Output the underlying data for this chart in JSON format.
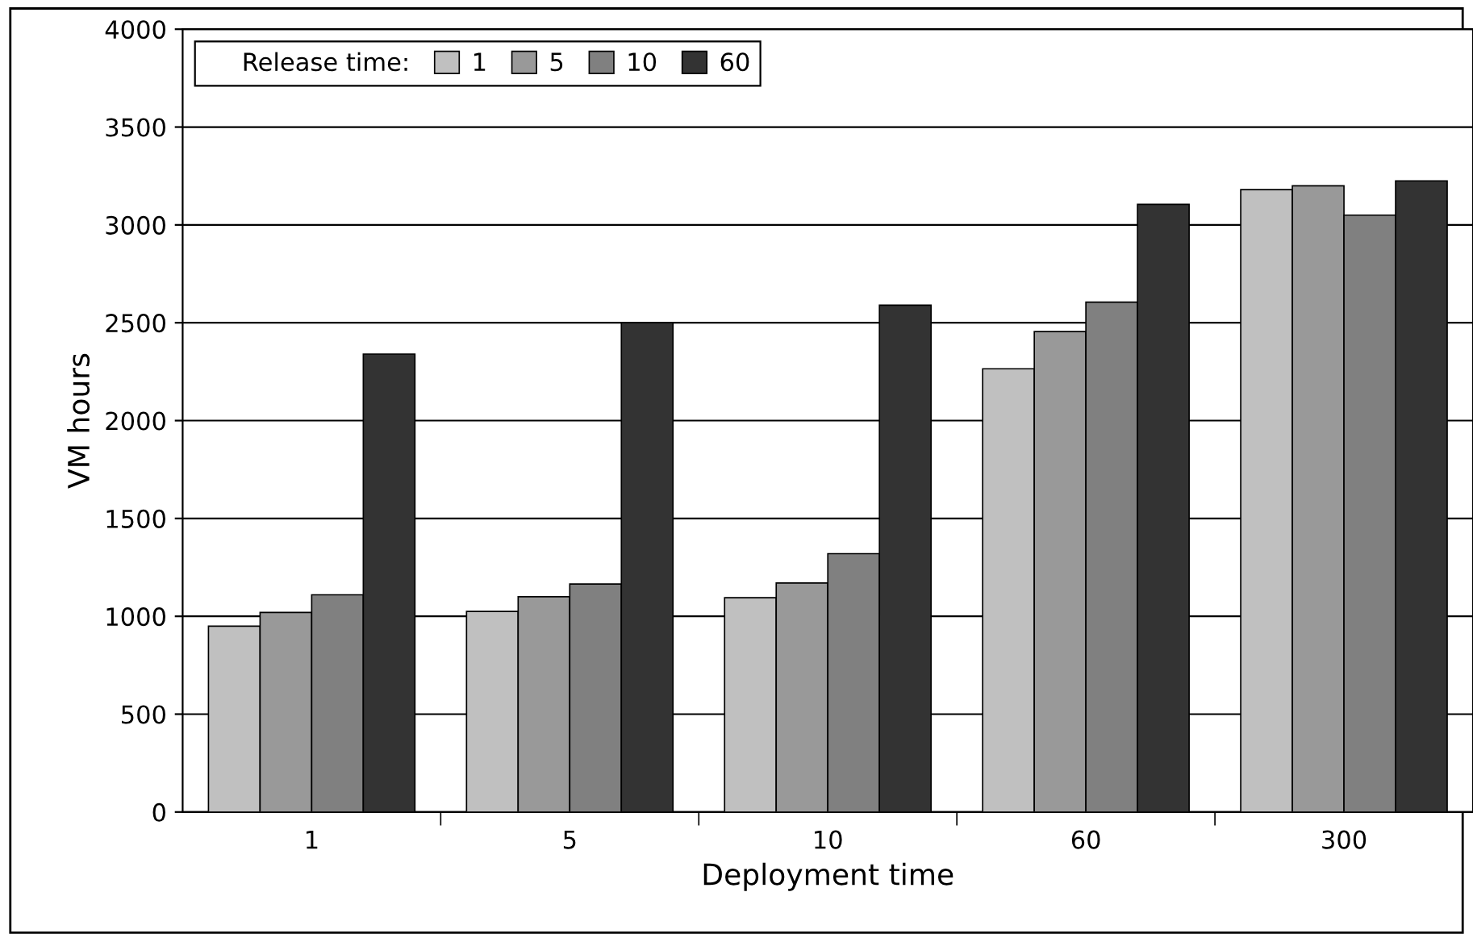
{
  "chart_data": {
    "type": "bar",
    "xlabel": "Deployment time",
    "ylabel": "VM hours",
    "legend_title": "Release time:",
    "categories": [
      "1",
      "5",
      "10",
      "60",
      "300"
    ],
    "series": [
      {
        "name": "1",
        "color": "#c0c0c0",
        "values": [
          950,
          1025,
          1095,
          2265,
          3180
        ]
      },
      {
        "name": "5",
        "color": "#999999",
        "values": [
          1020,
          1100,
          1170,
          2455,
          3200
        ]
      },
      {
        "name": "10",
        "color": "#808080",
        "values": [
          1110,
          1165,
          1320,
          2605,
          3050
        ]
      },
      {
        "name": "60",
        "color": "#333333",
        "values": [
          2340,
          2500,
          2590,
          3105,
          3225
        ]
      }
    ],
    "ylim": [
      0,
      4000
    ],
    "yticks": [
      0,
      500,
      1000,
      1500,
      2000,
      2500,
      3000,
      3500,
      4000
    ],
    "grid": "y",
    "legend": "top left"
  }
}
